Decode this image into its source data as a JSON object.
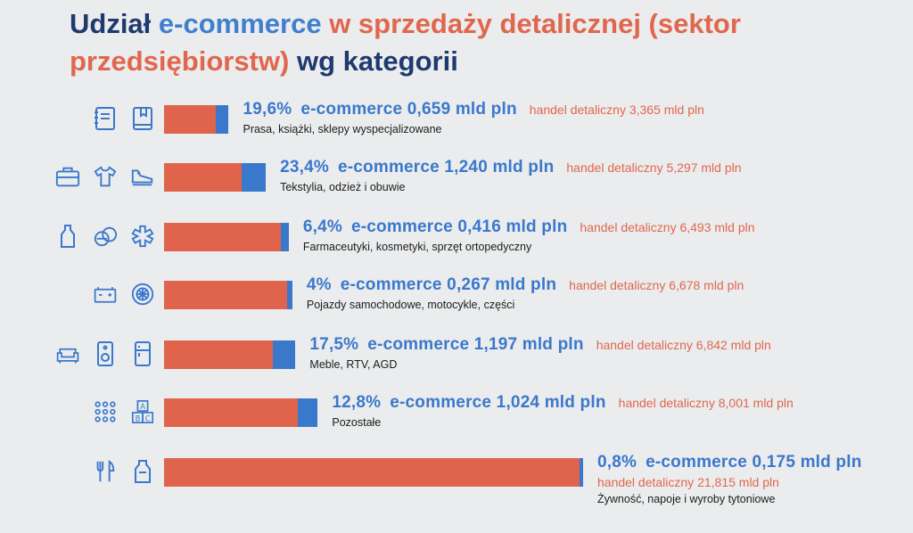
{
  "title": {
    "w1": "Udział",
    "w2": "e-commerce",
    "w3": "w sprzedaży detalicznej (sektor",
    "w4": "przedsiębiorstw)",
    "w5": "wg kategorii"
  },
  "colors": {
    "ecommerce": "#3a78cc",
    "retail": "#e0634c",
    "title_dark": "#1f3a6e"
  },
  "chart_data": {
    "type": "bar",
    "orientation": "horizontal",
    "stacked": true,
    "title": "Udział e-commerce w sprzedaży detalicznej (sektor przedsiębiorstw) wg kategorii",
    "unit": "mld pln",
    "categories": [
      "Prasa, książki, sklepy wyspecjalizowane",
      "Tekstylia, odzież i obuwie",
      "Farmaceutyki, kosmetyki, sprzęt ortopedyczny",
      "Pojazdy samochodowe, motocykle, części",
      "Meble, RTV, AGD",
      "Pozostałe",
      "Żywność, napoje i wyroby tytoniowe"
    ],
    "series": [
      {
        "name": "handel detaliczny",
        "values": [
          3.365,
          5.297,
          6.493,
          6.678,
          6.842,
          8.001,
          21.815
        ]
      },
      {
        "name": "e-commerce",
        "values": [
          0.659,
          1.24,
          0.416,
          0.267,
          1.197,
          1.024,
          0.175
        ]
      }
    ],
    "shares": [
      19.6,
      23.4,
      6.4,
      4,
      17.5,
      12.8,
      0.8
    ],
    "rows": [
      {
        "share": "19,6%",
        "ecom": "e-commerce 0,659 mld pln",
        "retail": "handel detaliczny 3,365 mld pln",
        "category": "Prasa, książki, sklepy wyspecjalizowane",
        "retail_value": 3.365,
        "ecom_value": 0.659
      },
      {
        "share": "23,4%",
        "ecom": "e-commerce 1,240 mld pln",
        "retail": "handel detaliczny 5,297 mld pln",
        "category": "Tekstylia, odzież i obuwie",
        "retail_value": 5.297,
        "ecom_value": 1.24
      },
      {
        "share": "6,4%",
        "ecom": "e-commerce 0,416 mld pln",
        "retail": "handel detaliczny 6,493 mld pln",
        "category": "Farmaceutyki, kosmetyki, sprzęt ortopedyczny",
        "retail_value": 6.493,
        "ecom_value": 0.416
      },
      {
        "share": "4%",
        "ecom": "e-commerce 0,267 mld pln",
        "retail": "handel detaliczny 6,678 mld pln",
        "category": "Pojazdy samochodowe, motocykle, części",
        "retail_value": 6.678,
        "ecom_value": 0.267
      },
      {
        "share": "17,5%",
        "ecom": "e-commerce 1,197 mld pln",
        "retail": "handel detaliczny 6,842 mld pln",
        "category": "Meble, RTV, AGD",
        "retail_value": 6.842,
        "ecom_value": 1.197
      },
      {
        "share": "12,8%",
        "ecom": "e-commerce 1,024 mld pln",
        "retail": "handel detaliczny 8,001 mld pln",
        "category": "Pozostałe",
        "retail_value": 8.001,
        "ecom_value": 1.024
      },
      {
        "share": "0,8%",
        "ecom": "e-commerce 0,175 mld pln",
        "retail": "handel detaliczny 21,815 mld pln",
        "category": "Żywność, napoje i wyroby tytoniowe",
        "retail_value": 21.815,
        "ecom_value": 0.175
      }
    ]
  }
}
